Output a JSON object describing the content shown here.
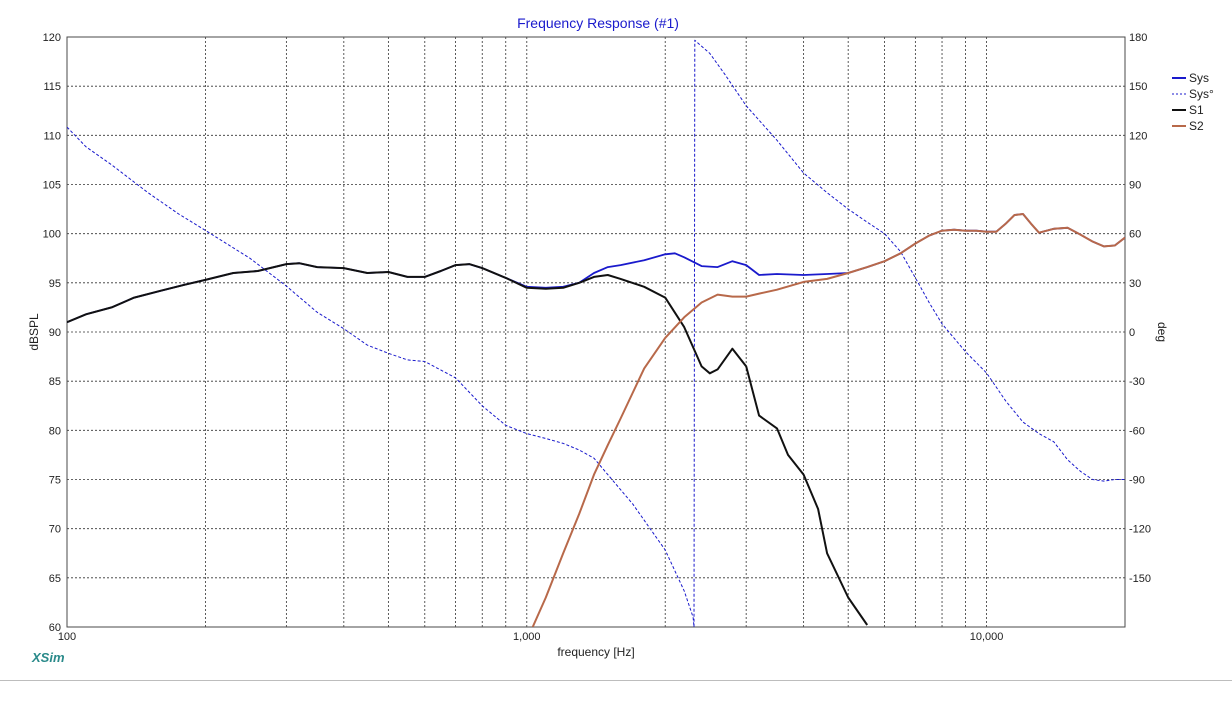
{
  "chart_data": {
    "type": "line",
    "title": "Frequency Response (#1)",
    "xlabel": "frequency [Hz]",
    "ylabel": "dBSPL",
    "y2label": "deg",
    "x_scale": "log",
    "xlim": [
      100,
      20000
    ],
    "ylim": [
      60,
      120
    ],
    "y2lim": [
      -180,
      180
    ],
    "grid": true,
    "legend_position": "top-right",
    "x_tick_labels": [
      "100",
      "1,000",
      "10,000"
    ],
    "y_ticks": [
      60,
      65,
      70,
      75,
      80,
      85,
      90,
      95,
      100,
      105,
      110,
      115,
      120
    ],
    "y2_ticks": [
      -150,
      -120,
      -90,
      -60,
      -30,
      0,
      30,
      60,
      90,
      120,
      150,
      180
    ],
    "series": [
      {
        "name": "Sys",
        "axis": "left",
        "unit": "dBSPL",
        "style": "solid",
        "color": "#1a1acc",
        "x": [
          100,
          110,
          125,
          140,
          160,
          180,
          200,
          230,
          260,
          300,
          320,
          350,
          400,
          450,
          500,
          550,
          600,
          650,
          700,
          750,
          800,
          900,
          1000,
          1100,
          1200,
          1300,
          1400,
          1500,
          1600,
          1800,
          2000,
          2100,
          2200,
          2400,
          2600,
          2800,
          3000,
          3200,
          3500,
          4000,
          4500,
          5000,
          5500,
          6000,
          6500,
          7000,
          7500,
          8000,
          8500,
          9000,
          9500,
          10000,
          10500,
          11000,
          11500,
          12000,
          12500,
          13000,
          14000,
          15000,
          16000,
          17000,
          18000,
          19000,
          20000
        ],
        "y": [
          91.0,
          91.8,
          92.5,
          93.5,
          94.2,
          94.8,
          95.3,
          96.0,
          96.2,
          96.9,
          97.0,
          96.6,
          96.5,
          96.0,
          96.1,
          95.6,
          95.6,
          96.2,
          96.8,
          96.9,
          96.5,
          95.5,
          94.6,
          94.5,
          94.6,
          95.0,
          96.0,
          96.6,
          96.8,
          97.3,
          97.9,
          98.0,
          97.6,
          96.7,
          96.6,
          97.2,
          96.8,
          95.8,
          95.9,
          95.8,
          95.9,
          96.0,
          96.6,
          97.2,
          98.0,
          99.0,
          99.8,
          100.3,
          100.4,
          100.3,
          100.3,
          100.2,
          100.2,
          101.0,
          101.9,
          102.0,
          101.0,
          100.1,
          100.5,
          100.6,
          99.9,
          99.2,
          98.7,
          98.8,
          99.6
        ]
      },
      {
        "name": "Sys°",
        "axis": "right",
        "unit": "deg",
        "style": "dashed",
        "color": "#1a1acc",
        "x": [
          100,
          110,
          125,
          150,
          175,
          200,
          250,
          300,
          350,
          400,
          450,
          500,
          550,
          600,
          700,
          800,
          900,
          1000,
          1100,
          1200,
          1300,
          1400,
          1500,
          1700,
          2000,
          2200,
          2300,
          2310,
          2320,
          2500,
          2700,
          3000,
          3500,
          4000,
          4500,
          5000,
          5500,
          6000,
          6500,
          7000,
          7500,
          8000,
          9000,
          10000,
          11000,
          12000,
          13000,
          14000,
          15000,
          16000,
          17000,
          18000,
          19000,
          20000
        ],
        "y": [
          125,
          113,
          102,
          85,
          72,
          62,
          45,
          28,
          12,
          2,
          -8,
          -13,
          -17,
          -18,
          -28,
          -45,
          -57,
          -62,
          -65,
          -68,
          -72,
          -77,
          -87,
          -105,
          -133,
          -158,
          -174,
          -180,
          178,
          170,
          157,
          138,
          117,
          97,
          85,
          75,
          67,
          60,
          49,
          33,
          18,
          5,
          -12,
          -25,
          -42,
          -55,
          -62,
          -67,
          -78,
          -85,
          -90,
          -91,
          -90,
          -90
        ]
      },
      {
        "name": "S1",
        "axis": "left",
        "unit": "dBSPL",
        "style": "solid",
        "color": "#111111",
        "x": [
          100,
          110,
          125,
          140,
          160,
          180,
          200,
          230,
          260,
          300,
          320,
          350,
          400,
          450,
          500,
          550,
          600,
          650,
          700,
          750,
          800,
          900,
          1000,
          1100,
          1200,
          1300,
          1400,
          1500,
          1600,
          1800,
          2000,
          2200,
          2400,
          2500,
          2600,
          2800,
          3000,
          3200,
          3500,
          3700,
          4000,
          4300,
          4500,
          5000,
          5500
        ],
        "y": [
          91.0,
          91.8,
          92.5,
          93.5,
          94.2,
          94.8,
          95.3,
          96.0,
          96.2,
          96.9,
          97.0,
          96.6,
          96.5,
          96.0,
          96.1,
          95.6,
          95.6,
          96.2,
          96.8,
          96.9,
          96.5,
          95.5,
          94.5,
          94.4,
          94.5,
          95.0,
          95.6,
          95.8,
          95.4,
          94.6,
          93.5,
          90.5,
          86.5,
          85.8,
          86.2,
          88.3,
          86.5,
          81.5,
          80.2,
          77.5,
          75.5,
          72.0,
          67.5,
          63.0,
          60.2
        ]
      },
      {
        "name": "S2",
        "axis": "left",
        "unit": "dBSPL",
        "style": "solid",
        "color": "#b8694a",
        "x": [
          1030,
          1100,
          1200,
          1300,
          1400,
          1500,
          1600,
          1800,
          2000,
          2200,
          2400,
          2600,
          2800,
          3000,
          3200,
          3500,
          4000,
          4500,
          5000,
          5500,
          6000,
          6500,
          7000,
          7500,
          8000,
          8500,
          9000,
          9500,
          10000,
          10500,
          11000,
          11500,
          12000,
          12500,
          13000,
          14000,
          15000,
          16000,
          17000,
          18000,
          19000,
          20000
        ],
        "y": [
          60.0,
          63.0,
          67.5,
          71.5,
          75.5,
          78.5,
          81.2,
          86.3,
          89.4,
          91.5,
          93.0,
          93.8,
          93.6,
          93.6,
          93.9,
          94.3,
          95.1,
          95.4,
          96.0,
          96.6,
          97.2,
          98.0,
          99.0,
          99.8,
          100.3,
          100.4,
          100.3,
          100.3,
          100.2,
          100.2,
          101.0,
          101.9,
          102.0,
          101.0,
          100.1,
          100.5,
          100.6,
          99.9,
          99.2,
          98.7,
          98.8,
          99.6
        ]
      }
    ]
  },
  "branding": {
    "logo_text": "XSim",
    "logo_color": "#2a8a8a"
  },
  "colors": {
    "title": "#1a1acc",
    "grid": "#333333",
    "frame": "#4a4a4a",
    "footer_rule": "#bdbdbd"
  }
}
